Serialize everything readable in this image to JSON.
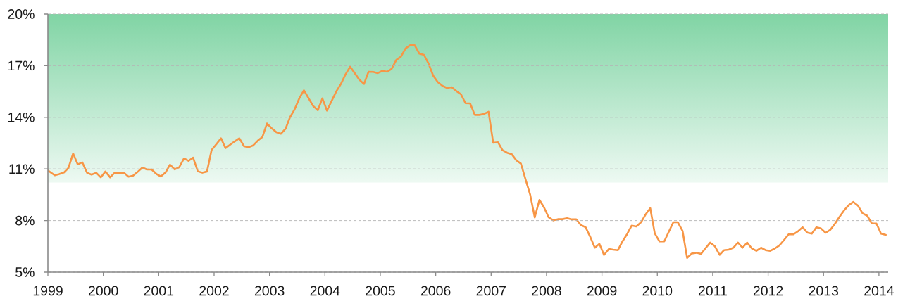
{
  "chart_data": {
    "type": "line",
    "x": [
      "1999-01-01",
      "1999-02-15",
      "1999-03-15",
      "1999-04-15",
      "1999-05-15",
      "1999-06-15",
      "1999-07-15",
      "1999-08-15",
      "1999-09-15",
      "1999-10-15",
      "1999-11-15",
      "1999-12-15",
      "2000-01-15",
      "2000-02-15",
      "2000-03-15",
      "2000-05-15",
      "2000-06-15",
      "2000-07-15",
      "2000-08-15",
      "2000-09-15",
      "2000-10-15",
      "2000-11-15",
      "2000-12-15",
      "2001-01-15",
      "2001-02-15",
      "2001-03-15",
      "2001-04-15",
      "2001-05-15",
      "2001-06-15",
      "2001-07-15",
      "2001-08-15",
      "2001-09-15",
      "2001-10-15",
      "2001-11-15",
      "2001-12-15",
      "2002-01-15",
      "2002-02-15",
      "2002-03-15",
      "2002-04-15",
      "2002-05-15",
      "2002-06-15",
      "2002-07-15",
      "2002-08-15",
      "2002-09-15",
      "2002-10-15",
      "2002-11-15",
      "2002-12-15",
      "2003-01-15",
      "2003-02-15",
      "2003-03-15",
      "2003-04-15",
      "2003-05-15",
      "2003-06-15",
      "2003-07-15",
      "2003-08-15",
      "2003-10-15",
      "2003-11-15",
      "2003-12-15",
      "2004-01-15",
      "2004-03-15",
      "2004-04-15",
      "2004-05-15",
      "2004-06-15",
      "2004-08-15",
      "2004-09-15",
      "2004-10-15",
      "2004-11-15",
      "2004-12-15",
      "2005-01-15",
      "2005-02-15",
      "2005-03-15",
      "2005-04-15",
      "2005-05-15",
      "2005-06-15",
      "2005-07-15",
      "2005-08-15",
      "2005-09-15",
      "2005-10-15",
      "2005-11-15",
      "2005-12-15",
      "2006-01-15",
      "2006-02-15",
      "2006-03-15",
      "2006-04-15",
      "2006-05-15",
      "2006-06-15",
      "2006-07-15",
      "2006-08-15",
      "2006-09-15",
      "2006-10-15",
      "2006-11-15",
      "2006-12-15",
      "2007-01-15",
      "2007-02-15",
      "2007-03-15",
      "2007-04-15",
      "2007-05-15",
      "2007-06-15",
      "2007-07-15",
      "2007-08-15",
      "2007-09-15",
      "2007-10-15",
      "2007-11-15",
      "2007-12-15",
      "2008-01-15",
      "2008-02-15",
      "2008-03-15",
      "2008-04-15",
      "2008-05-15",
      "2008-06-15",
      "2008-07-15",
      "2008-08-15",
      "2008-09-15",
      "2008-10-15",
      "2008-11-15",
      "2008-12-15",
      "2009-01-15",
      "2009-02-15",
      "2009-03-15",
      "2009-04-15",
      "2009-05-15",
      "2009-06-15",
      "2009-07-15",
      "2009-08-15",
      "2009-09-15",
      "2009-10-15",
      "2009-11-15",
      "2009-12-15",
      "2010-01-15",
      "2010-02-15",
      "2010-03-15",
      "2010-04-15",
      "2010-05-15",
      "2010-06-15",
      "2010-07-15",
      "2010-08-15",
      "2010-09-15",
      "2010-10-15",
      "2010-11-15",
      "2010-12-15",
      "2011-01-15",
      "2011-02-15",
      "2011-03-15",
      "2011-04-15",
      "2011-05-15",
      "2011-06-15",
      "2011-07-15",
      "2011-08-15",
      "2011-09-15",
      "2011-10-15",
      "2011-11-15",
      "2011-12-15",
      "2012-01-15",
      "2012-02-15",
      "2012-03-15",
      "2012-04-15",
      "2012-05-15",
      "2012-06-15",
      "2012-07-15",
      "2012-08-15",
      "2012-09-15",
      "2012-10-15",
      "2012-11-15",
      "2012-12-15",
      "2013-01-15",
      "2013-02-15",
      "2013-03-15",
      "2013-04-15",
      "2013-05-15",
      "2013-06-15",
      "2013-07-15",
      "2013-08-15",
      "2013-09-15",
      "2013-10-15",
      "2013-11-15",
      "2013-12-15",
      "2014-01-15",
      "2014-02-15"
    ],
    "series": [
      {
        "color": "#f79646",
        "values": [
          10.91,
          10.63,
          10.7,
          10.79,
          11.06,
          11.9,
          11.27,
          11.38,
          10.78,
          10.67,
          10.78,
          10.51,
          10.85,
          10.51,
          10.78,
          10.78,
          10.55,
          10.61,
          10.83,
          11.08,
          10.97,
          10.97,
          10.72,
          10.56,
          10.8,
          11.25,
          10.97,
          11.1,
          11.61,
          11.47,
          11.66,
          10.86,
          10.78,
          10.85,
          12.1,
          12.43,
          12.78,
          12.21,
          12.41,
          12.6,
          12.78,
          12.33,
          12.26,
          12.37,
          12.64,
          12.86,
          13.64,
          13.37,
          13.13,
          13.04,
          13.33,
          14.01,
          14.48,
          15.1,
          15.57,
          14.66,
          14.41,
          15.1,
          14.39,
          15.5,
          15.94,
          16.49,
          16.94,
          16.19,
          15.94,
          16.65,
          16.64,
          16.57,
          16.7,
          16.65,
          16.82,
          17.34,
          17.52,
          18.0,
          18.19,
          18.19,
          17.7,
          17.63,
          17.11,
          16.42,
          16.05,
          15.82,
          15.71,
          15.75,
          15.53,
          15.34,
          14.82,
          14.81,
          14.14,
          14.14,
          14.2,
          14.32,
          12.52,
          12.55,
          12.1,
          11.94,
          11.86,
          11.5,
          11.31,
          10.4,
          9.5,
          8.18,
          9.2,
          8.77,
          8.19,
          8.01,
          8.08,
          8.08,
          8.14,
          8.07,
          8.07,
          7.74,
          7.61,
          7.06,
          6.42,
          6.65,
          6.0,
          6.35,
          6.31,
          6.28,
          6.79,
          7.22,
          7.71,
          7.66,
          7.9,
          8.35,
          8.72,
          7.25,
          6.79,
          6.79,
          7.33,
          7.9,
          7.9,
          7.4,
          5.83,
          6.08,
          6.13,
          6.06,
          6.4,
          6.72,
          6.51,
          6.01,
          6.28,
          6.31,
          6.42,
          6.72,
          6.42,
          6.72,
          6.38,
          6.24,
          6.42,
          6.28,
          6.24,
          6.38,
          6.56,
          6.88,
          7.2,
          7.2,
          7.37,
          7.61,
          7.3,
          7.24,
          7.61,
          7.54,
          7.29,
          7.47,
          7.81,
          8.22,
          8.59,
          8.9,
          9.08,
          8.87,
          8.42,
          8.28,
          7.83,
          7.83,
          7.24,
          7.17
        ]
      }
    ],
    "xlim": [
      "1999-01-01",
      "2014-03-01"
    ],
    "xticks": [
      "1999",
      "2000",
      "2001",
      "2002",
      "2003",
      "2004",
      "2005",
      "2006",
      "2007",
      "2008",
      "2009",
      "2010",
      "2011",
      "2012",
      "2013",
      "2014"
    ],
    "ylim": [
      5,
      20
    ],
    "yticks": [
      {
        "value": 5,
        "label": "5%"
      },
      {
        "value": 8,
        "label": "8%"
      },
      {
        "value": 11,
        "label": "11%"
      },
      {
        "value": 14,
        "label": "14%"
      },
      {
        "value": 17,
        "label": "17%"
      },
      {
        "value": 20,
        "label": "20%"
      }
    ],
    "grid": "y",
    "bands": [
      {
        "axis": "y",
        "from": 10.2,
        "to": 20,
        "color": "#80d4a4"
      }
    ]
  }
}
